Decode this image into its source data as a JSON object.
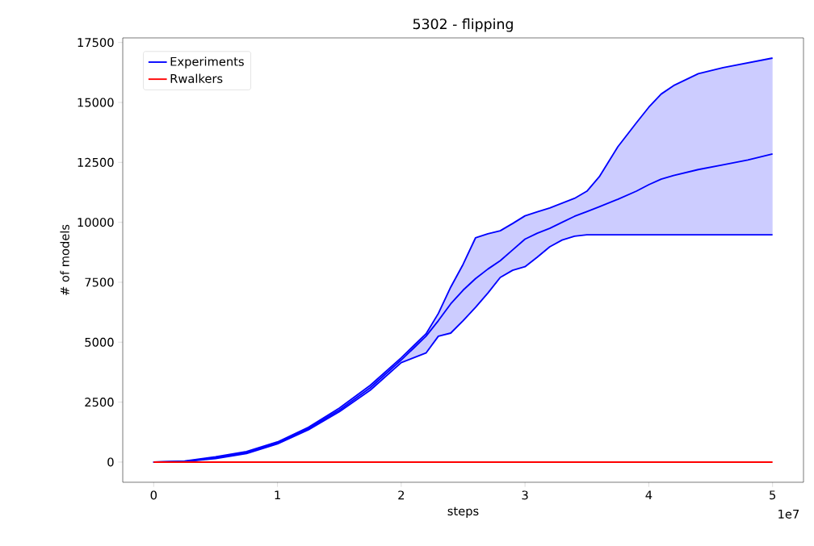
{
  "chart_data": {
    "type": "line",
    "title": "5302 - flipping",
    "xlabel": "steps",
    "ylabel": "# of models",
    "annotations": [
      "1e7"
    ],
    "xlim": [
      -0.25,
      5.25
    ],
    "ylim": [
      -842,
      17692
    ],
    "xticks": [
      0,
      1,
      2,
      3,
      4,
      5
    ],
    "yticks": [
      0,
      2500,
      5000,
      7500,
      10000,
      12500,
      15000,
      17500
    ],
    "legend": "top left",
    "series": [
      {
        "name": "Experiments",
        "color": "#0000ff",
        "x": [
          0,
          0.25,
          0.5,
          0.75,
          1,
          1.25,
          1.5,
          1.75,
          2,
          2.1,
          2.2,
          2.3,
          2.4,
          2.5,
          2.6,
          2.7,
          2.8,
          2.9,
          3,
          3.1,
          3.2,
          3.3,
          3.4,
          3.5,
          3.6,
          3.75,
          3.9,
          4,
          4.1,
          4.2,
          4.4,
          4.6,
          4.8,
          5
        ],
        "values": [
          0,
          30,
          180,
          400,
          800,
          1400,
          2170,
          3100,
          4260,
          4750,
          5250,
          5900,
          6600,
          7170,
          7650,
          8050,
          8400,
          8850,
          9300,
          9550,
          9750,
          10000,
          10250,
          10450,
          10650,
          10960,
          11300,
          11570,
          11800,
          11950,
          12200,
          12400,
          12600,
          12850
        ],
        "upper": [
          0,
          40,
          220,
          440,
          840,
          1450,
          2250,
          3200,
          4350,
          4850,
          5350,
          6200,
          7300,
          8250,
          9350,
          9520,
          9650,
          9950,
          10270,
          10440,
          10600,
          10800,
          11000,
          11300,
          11900,
          13150,
          14150,
          14800,
          15350,
          15700,
          16200,
          16450,
          16650,
          16850
        ],
        "lower": [
          0,
          20,
          150,
          360,
          760,
          1350,
          2100,
          3000,
          4150,
          4350,
          4550,
          5250,
          5380,
          5900,
          6450,
          7050,
          7700,
          8000,
          8150,
          8550,
          8980,
          9260,
          9420,
          9480,
          9480,
          9480,
          9480,
          9480,
          9480,
          9480,
          9480,
          9480,
          9480,
          9480
        ]
      },
      {
        "name": "Rwalkers",
        "color": "#ff0000",
        "x": [
          0,
          5
        ],
        "values": [
          0,
          0
        ]
      }
    ]
  }
}
